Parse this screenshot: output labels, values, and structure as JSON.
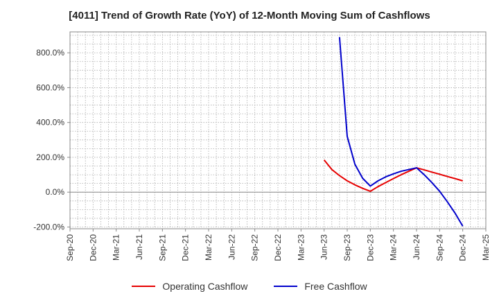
{
  "chart_data": {
    "type": "line",
    "title": "[4011]  Trend of Growth Rate (YoY) of 12-Month Moving Sum of Cashflows",
    "xlabel": "",
    "ylabel": "",
    "x_ticks": [
      "Sep-20",
      "Dec-20",
      "Mar-21",
      "Jun-21",
      "Sep-21",
      "Dec-21",
      "Mar-22",
      "Jun-22",
      "Sep-22",
      "Dec-22",
      "Mar-23",
      "Jun-23",
      "Sep-23",
      "Dec-23",
      "Mar-24",
      "Jun-24",
      "Sep-24",
      "Dec-24",
      "Mar-25"
    ],
    "y_ticks": [
      "800.0%",
      "600.0%",
      "400.0%",
      "200.0%",
      "0.0%",
      "-200.0%"
    ],
    "y_tick_values": [
      800,
      600,
      400,
      200,
      0,
      -200
    ],
    "ylim": [
      -210,
      920
    ],
    "grid": true,
    "legend_position": "bottom",
    "series": [
      {
        "name": "Operating Cashflow",
        "color": "#e60000",
        "x": [
          "Jun-23",
          "Jul-23",
          "Aug-23",
          "Sep-23",
          "Oct-23",
          "Nov-23",
          "Dec-23",
          "Jan-24",
          "Feb-24",
          "Mar-24",
          "Apr-24",
          "May-24",
          "Jun-24",
          "Jul-24",
          "Aug-24",
          "Sep-24",
          "Oct-24",
          "Nov-24",
          "Dec-24"
        ],
        "values": [
          185,
          130,
          95,
          65,
          42,
          22,
          5,
          32,
          55,
          78,
          100,
          120,
          140,
          128,
          115,
          103,
          90,
          78,
          65
        ]
      },
      {
        "name": "Free Cashflow",
        "color": "#0000cc",
        "x": [
          "Aug-23",
          "Sep-23",
          "Oct-23",
          "Nov-23",
          "Dec-23",
          "Jan-24",
          "Feb-24",
          "Mar-24",
          "Apr-24",
          "May-24",
          "Jun-24",
          "Jul-24",
          "Aug-24",
          "Sep-24",
          "Oct-24",
          "Nov-24",
          "Dec-24"
        ],
        "values": [
          890,
          320,
          160,
          80,
          35,
          65,
          88,
          105,
          120,
          130,
          140,
          100,
          55,
          5,
          -55,
          -120,
          -195
        ]
      }
    ]
  }
}
